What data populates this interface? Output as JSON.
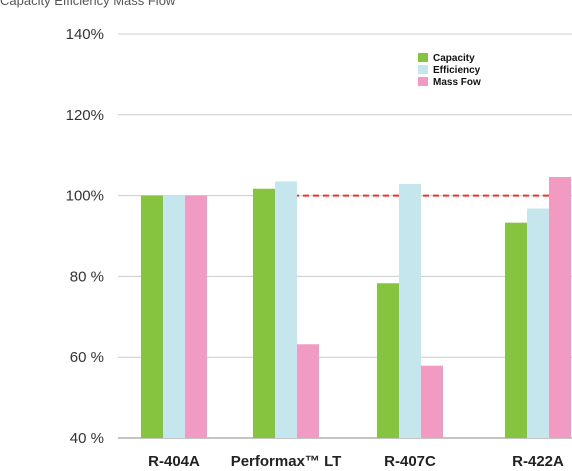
{
  "header_text": "Capacity  Efficiency  Mass Flow",
  "chart_data": {
    "type": "bar",
    "categories": [
      "R-404A",
      "Performax™ LT",
      "R-407C",
      "R-422A"
    ],
    "series": [
      {
        "name": "Capacity",
        "values": [
          100,
          101.7,
          78.3,
          93.3
        ],
        "color": "#86c440"
      },
      {
        "name": "Efficiency",
        "values": [
          100,
          103.5,
          102.9,
          96.8
        ],
        "color": "#c5e6ec"
      },
      {
        "name": "Mass Fow",
        "values": [
          100,
          63.2,
          57.9,
          104.6
        ],
        "color": "#f19bc3"
      }
    ],
    "yticks": [
      "40 %",
      "60 %",
      "80 %",
      "100%",
      "120%",
      "140%"
    ],
    "ylim": [
      40,
      140
    ],
    "ytick_values": [
      40,
      60,
      80,
      100,
      120,
      140
    ],
    "reference_line": {
      "value": 100,
      "color": "#e8362b",
      "style": "dashed",
      "starts_at_category": 1
    },
    "grid": "horizontal",
    "legend_position": "top-right"
  }
}
